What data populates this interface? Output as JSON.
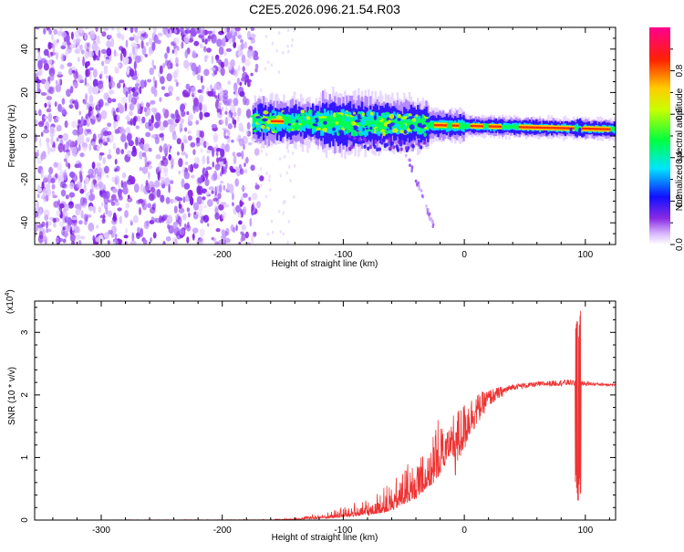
{
  "chart_data": [
    {
      "type": "heatmap",
      "title": "C2E5.2026.096.21.54.R03",
      "xlabel": "Height of straight line (km)",
      "ylabel": "Frequency (Hz)",
      "xlim": [
        -355,
        125
      ],
      "ylim": [
        -50,
        50
      ],
      "xticks": [
        -300,
        -200,
        -100,
        0,
        100
      ],
      "yticks": [
        -40,
        -20,
        0,
        20,
        40
      ],
      "colorbar": {
        "label": "Normalized spectral amplitude",
        "range": [
          0,
          1
        ],
        "ticks": [
          0.0,
          0.2,
          0.4,
          0.6,
          0.8
        ]
      },
      "regions": [
        {
          "name": "broadband noise",
          "x_range": [
            -355,
            -165
          ],
          "freq_range": [
            -50,
            50
          ],
          "amplitude": 0.1
        },
        {
          "name": "signal band",
          "x_range": [
            -175,
            125
          ],
          "center_freq_start": 7,
          "center_freq_end": 3,
          "amplitude_peak": 0.95
        },
        {
          "name": "descending tail",
          "x_range": [
            -50,
            -25
          ],
          "freq_range": [
            -42,
            -5
          ],
          "amplitude": 0.1
        }
      ]
    },
    {
      "type": "line",
      "title": "",
      "xlabel": "Height of straight line (km)",
      "ylabel": "SNR (10 * v/v)",
      "scale_label": "(x10",
      "scale_exp": "4",
      "scale_close": ")",
      "xlim": [
        -355,
        125
      ],
      "ylim": [
        0,
        3.5
      ],
      "xticks": [
        -300,
        -200,
        -100,
        0,
        100
      ],
      "yticks": [
        0,
        1,
        2,
        3
      ],
      "color": "#ee3333",
      "envelope": [
        {
          "x": -355,
          "base": 0.0,
          "amp": 0.0
        },
        {
          "x": -160,
          "base": 0.0,
          "amp": 0.01
        },
        {
          "x": -140,
          "base": 0.01,
          "amp": 0.03
        },
        {
          "x": -110,
          "base": 0.03,
          "amp": 0.12
        },
        {
          "x": -80,
          "base": 0.07,
          "amp": 0.3
        },
        {
          "x": -60,
          "base": 0.15,
          "amp": 0.45
        },
        {
          "x": -40,
          "base": 0.35,
          "amp": 0.8
        },
        {
          "x": -25,
          "base": 0.6,
          "amp": 1.1
        },
        {
          "x": -15,
          "base": 0.9,
          "amp": 1.0
        },
        {
          "x": -5,
          "base": 1.3,
          "amp": 0.7
        },
        {
          "x": 5,
          "base": 1.65,
          "amp": 0.45
        },
        {
          "x": 20,
          "base": 1.95,
          "amp": 0.2
        },
        {
          "x": 40,
          "base": 2.13,
          "amp": 0.06
        },
        {
          "x": 60,
          "base": 2.17,
          "amp": 0.06
        },
        {
          "x": 85,
          "base": 2.2,
          "amp": 0.07
        },
        {
          "x": 100,
          "base": 2.18,
          "amp": 0.05
        },
        {
          "x": 125,
          "base": 2.16,
          "amp": 0.02
        }
      ],
      "spike": {
        "x": 94,
        "max": 3.5,
        "min": 0.32
      }
    }
  ]
}
